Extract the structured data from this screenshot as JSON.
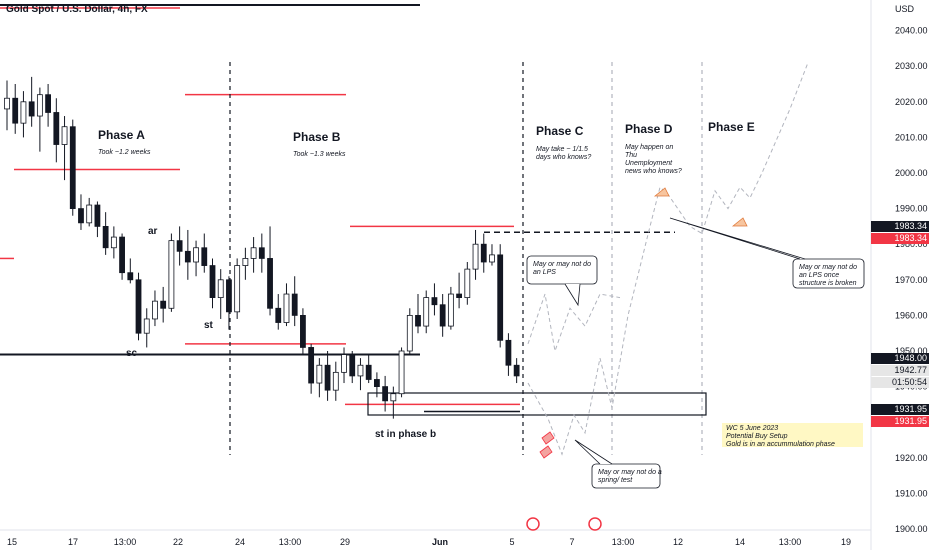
{
  "title": "Gold Spot / U.S. Dollar, 4h, FX",
  "currency": "USD",
  "chart_data": {
    "type": "candlestick",
    "symbol": "Gold Spot / U.S. Dollar",
    "timeframe": "4h",
    "y_ticks": [
      1900,
      1910,
      1920,
      1930,
      1940,
      1950,
      1960,
      1970,
      1980,
      1990,
      2000,
      2010,
      2020,
      2030,
      2040
    ],
    "y_tick_labels": [
      "1900.00",
      "1910.00",
      "1920.00",
      "1930.00",
      "1940.00",
      "1950.00",
      "1960.00",
      "1970.00",
      "1980.00",
      "1990.00",
      "2000.00",
      "2010.00",
      "2020.00",
      "2030.00",
      "2040.00"
    ],
    "x_tick_labels": [
      "15",
      "17",
      "13:00",
      "22",
      "24",
      "13:00",
      "29",
      "Jun",
      "5",
      "7",
      "13:00",
      "12",
      "14",
      "13:00",
      "19"
    ],
    "ylim": [
      1897,
      2050
    ],
    "candles": [
      {
        "o": 2018,
        "h": 2026,
        "l": 2012,
        "c": 2021
      },
      {
        "o": 2021,
        "h": 2025,
        "l": 2011,
        "c": 2014
      },
      {
        "o": 2014,
        "h": 2023,
        "l": 2010,
        "c": 2020
      },
      {
        "o": 2020,
        "h": 2027,
        "l": 2013,
        "c": 2016
      },
      {
        "o": 2016,
        "h": 2024,
        "l": 2006,
        "c": 2022
      },
      {
        "o": 2022,
        "h": 2025,
        "l": 2013,
        "c": 2017
      },
      {
        "o": 2017,
        "h": 2021,
        "l": 2003,
        "c": 2008
      },
      {
        "o": 2008,
        "h": 2016,
        "l": 1998,
        "c": 2013
      },
      {
        "o": 2013,
        "h": 2015,
        "l": 1988,
        "c": 1990
      },
      {
        "o": 1990,
        "h": 1994,
        "l": 1984,
        "c": 1986
      },
      {
        "o": 1986,
        "h": 1993,
        "l": 1985,
        "c": 1991
      },
      {
        "o": 1991,
        "h": 1992,
        "l": 1982,
        "c": 1985
      },
      {
        "o": 1985,
        "h": 1989,
        "l": 1977,
        "c": 1979
      },
      {
        "o": 1979,
        "h": 1985,
        "l": 1976,
        "c": 1982
      },
      {
        "o": 1982,
        "h": 1983,
        "l": 1970,
        "c": 1972
      },
      {
        "o": 1972,
        "h": 1976,
        "l": 1969,
        "c": 1970
      },
      {
        "o": 1970,
        "h": 1972,
        "l": 1953,
        "c": 1955
      },
      {
        "o": 1955,
        "h": 1962,
        "l": 1951,
        "c": 1959
      },
      {
        "o": 1959,
        "h": 1967,
        "l": 1957,
        "c": 1964
      },
      {
        "o": 1964,
        "h": 1968,
        "l": 1958,
        "c": 1962
      },
      {
        "o": 1962,
        "h": 1983,
        "l": 1961,
        "c": 1981
      },
      {
        "o": 1981,
        "h": 1985,
        "l": 1974,
        "c": 1978
      },
      {
        "o": 1978,
        "h": 1984,
        "l": 1970,
        "c": 1975
      },
      {
        "o": 1975,
        "h": 1981,
        "l": 1971,
        "c": 1979
      },
      {
        "o": 1979,
        "h": 1983,
        "l": 1972,
        "c": 1974
      },
      {
        "o": 1974,
        "h": 1976,
        "l": 1962,
        "c": 1965
      },
      {
        "o": 1965,
        "h": 1973,
        "l": 1959,
        "c": 1970
      },
      {
        "o": 1970,
        "h": 1971,
        "l": 1956,
        "c": 1961
      },
      {
        "o": 1961,
        "h": 1976,
        "l": 1959,
        "c": 1974
      },
      {
        "o": 1974,
        "h": 1979,
        "l": 1970,
        "c": 1976
      },
      {
        "o": 1976,
        "h": 1982,
        "l": 1972,
        "c": 1979
      },
      {
        "o": 1979,
        "h": 1983,
        "l": 1972,
        "c": 1976
      },
      {
        "o": 1976,
        "h": 1985,
        "l": 1960,
        "c": 1962
      },
      {
        "o": 1962,
        "h": 1966,
        "l": 1956,
        "c": 1958
      },
      {
        "o": 1958,
        "h": 1969,
        "l": 1957,
        "c": 1966
      },
      {
        "o": 1966,
        "h": 1971,
        "l": 1957,
        "c": 1960
      },
      {
        "o": 1960,
        "h": 1962,
        "l": 1949,
        "c": 1951
      },
      {
        "o": 1951,
        "h": 1952,
        "l": 1938,
        "c": 1941
      },
      {
        "o": 1941,
        "h": 1948,
        "l": 1937,
        "c": 1946
      },
      {
        "o": 1946,
        "h": 1950,
        "l": 1936,
        "c": 1939
      },
      {
        "o": 1939,
        "h": 1947,
        "l": 1936,
        "c": 1944
      },
      {
        "o": 1944,
        "h": 1951,
        "l": 1941,
        "c": 1949
      },
      {
        "o": 1949,
        "h": 1950,
        "l": 1941,
        "c": 1943
      },
      {
        "o": 1943,
        "h": 1948,
        "l": 1939,
        "c": 1946
      },
      {
        "o": 1946,
        "h": 1949,
        "l": 1941,
        "c": 1942
      },
      {
        "o": 1942,
        "h": 1944,
        "l": 1937,
        "c": 1940
      },
      {
        "o": 1940,
        "h": 1943,
        "l": 1933,
        "c": 1936
      },
      {
        "o": 1936,
        "h": 1940,
        "l": 1931,
        "c": 1938
      },
      {
        "o": 1938,
        "h": 1951,
        "l": 1937,
        "c": 1950
      },
      {
        "o": 1950,
        "h": 1962,
        "l": 1949,
        "c": 1960
      },
      {
        "o": 1960,
        "h": 1966,
        "l": 1955,
        "c": 1957
      },
      {
        "o": 1957,
        "h": 1967,
        "l": 1955,
        "c": 1965
      },
      {
        "o": 1965,
        "h": 1969,
        "l": 1960,
        "c": 1963
      },
      {
        "o": 1963,
        "h": 1966,
        "l": 1954,
        "c": 1957
      },
      {
        "o": 1957,
        "h": 1968,
        "l": 1956,
        "c": 1966
      },
      {
        "o": 1966,
        "h": 1972,
        "l": 1962,
        "c": 1965
      },
      {
        "o": 1965,
        "h": 1975,
        "l": 1963,
        "c": 1973
      },
      {
        "o": 1973,
        "h": 1984,
        "l": 1970,
        "c": 1980
      },
      {
        "o": 1980,
        "h": 1983,
        "l": 1972,
        "c": 1975
      },
      {
        "o": 1975,
        "h": 1980,
        "l": 1974,
        "c": 1977
      },
      {
        "o": 1977,
        "h": 1980,
        "l": 1951,
        "c": 1953
      },
      {
        "o": 1953,
        "h": 1955,
        "l": 1943,
        "c": 1946
      },
      {
        "o": 1946,
        "h": 1948,
        "l": 1941,
        "c": 1943
      }
    ]
  },
  "phases": [
    {
      "name": "Phase A",
      "note": "Took ~1.2 weeks"
    },
    {
      "name": "Phase B",
      "note": "Took ~1.3 weeks"
    },
    {
      "name": "Phase C",
      "note_lines": [
        "May take ~ 1/1.5",
        "days who knows?"
      ]
    },
    {
      "name": "Phase D",
      "note_lines": [
        "May happen on",
        "Thu",
        "Unemployment",
        "news who knows?"
      ]
    },
    {
      "name": "Phase E"
    }
  ],
  "labels": {
    "ar": "ar",
    "st": "st",
    "sc": "sc",
    "st_phase_b": "st in phase b"
  },
  "callouts": {
    "lps": [
      "May or may not do",
      "an LPS"
    ],
    "spring": [
      "May or may not do a",
      "spring/ test"
    ],
    "lps_broken": [
      "May or may not do",
      "an LPS once",
      "structure is broken"
    ]
  },
  "wc_note": [
    "WC 5 June 2023",
    "Potential Buy Setup",
    "Gold is in an accummulation phase"
  ],
  "price_boxes": [
    {
      "label": "1983.34",
      "value": 1983.34,
      "bg": "#131722",
      "color": "#ffffff",
      "offset": -6
    },
    {
      "label": "1983.34",
      "value": 1983.34,
      "bg": "#f23645",
      "color": "#ffffff",
      "offset": 6
    },
    {
      "label": "1948.00",
      "value": 1948.0,
      "bg": "#131722",
      "color": "#ffffff",
      "offset": 0
    },
    {
      "label": "1942.77",
      "value": 1942.77,
      "bg": "#e6e6e6",
      "color": "#131722",
      "offset": -6
    },
    {
      "label": "01:50:54",
      "value": 1942.77,
      "bg": "#e6e6e6",
      "color": "#131722",
      "offset": 6
    },
    {
      "label": "1931.95",
      "value": 1931.95,
      "bg": "#131722",
      "color": "#ffffff",
      "offset": -6
    },
    {
      "label": "1931.95",
      "value": 1931.95,
      "bg": "#f23645",
      "color": "#ffffff",
      "offset": 6
    }
  ],
  "colors": {
    "resistance": "#f23645",
    "support": "#131722",
    "candle": "#131722",
    "projection": "#b2b5be",
    "note_bg": "#fff8c4"
  }
}
